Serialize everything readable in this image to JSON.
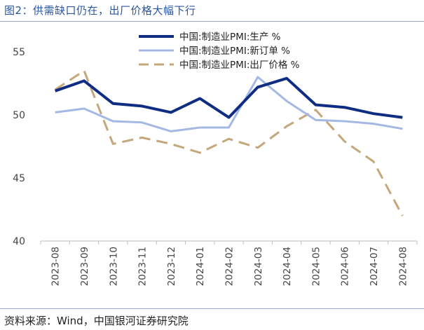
{
  "title": "图2：供需缺口仍在，出厂价格大幅下行",
  "source": "资料来源：Wind，中国银河证券研究院",
  "chart_data": {
    "type": "line",
    "x": [
      "2023-08",
      "2023-09",
      "2023-10",
      "2023-11",
      "2023-12",
      "2024-01",
      "2024-02",
      "2024-03",
      "2024-04",
      "2024-05",
      "2024-06",
      "2024-07",
      "2024-08"
    ],
    "ylim": [
      40,
      55
    ],
    "yticks": [
      40,
      45,
      50,
      55
    ],
    "grid": false,
    "legend_position": "top-right",
    "series": [
      {
        "name": "中国:制造业PMI:生产 %",
        "color": "#0f2d82",
        "dash": "solid",
        "width": "thick",
        "values": [
          51.9,
          52.7,
          50.9,
          50.7,
          50.2,
          51.3,
          49.8,
          52.2,
          52.9,
          50.8,
          50.6,
          50.1,
          49.8
        ]
      },
      {
        "name": "中国:制造业PMI:新订单 %",
        "color": "#a4b8e4",
        "dash": "solid",
        "width": "medium",
        "values": [
          50.2,
          50.5,
          49.5,
          49.4,
          48.7,
          49.0,
          49.0,
          53.0,
          51.1,
          49.6,
          49.5,
          49.3,
          48.9
        ]
      },
      {
        "name": "中国:制造业PMI:出厂价格 %",
        "color": "#c4a77a",
        "dash": "dashed",
        "width": "medium",
        "values": [
          52.0,
          53.5,
          47.7,
          48.2,
          47.7,
          47.0,
          48.1,
          47.4,
          49.1,
          50.4,
          47.9,
          46.3,
          42.0
        ]
      }
    ]
  }
}
